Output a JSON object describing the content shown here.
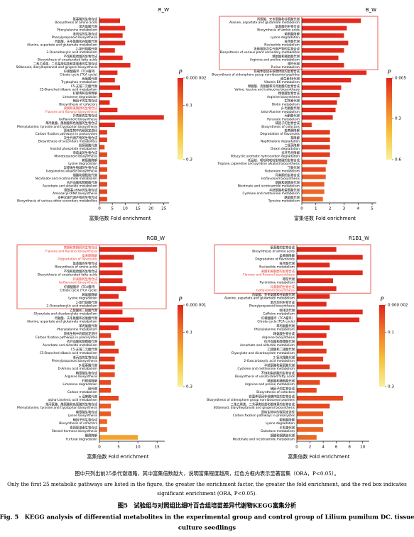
{
  "chart_data": [
    {
      "type": "bar",
      "title": "R_W",
      "x_label": "富集倍数 Fold enrichment",
      "xlim": [
        0,
        27
      ],
      "xticks": [
        0,
        5,
        10,
        15,
        20,
        25
      ],
      "categories_zh": [
        "氨基酸的生物合成",
        "苯丙氨酸代谢",
        "苯丙烷的生物合成",
        "丙氨酸、天冬氨酸和谷氨酸代谢",
        "2-氧代羧酸代谢",
        "不饱和脂肪酸的生物合成",
        "二苯乙烯类、二芳基庚烷类和姜辣素的生物合成",
        "柠檬酸循环（TCA循环）",
        "色氨酸代谢",
        "C5-支链二元酸代谢",
        "柠檬烯和蒎烯降解",
        "辅因子的生物合成",
        "黄酮和黄酮醇的生物合成",
        "异黄酮的生物合成",
        "苯丙氨酸、酪氨酸和色氨酸的生物合成",
        "原核生物中的碳固定途径",
        "次生代谢产物的生物合成",
        "肌醇磷酸代谢",
        "单萜类的生物合成",
        "赖氨酸降解",
        "异喹啉生物碱的生物合成",
        "烟酸和烟酰胺代谢",
        "抗坏血酸和醛糖酸代谢",
        "氨酰基-tRNA的生物合成",
        "多种次级代谢产物的生物合成"
      ],
      "categories": [
        "Biosynthesis of amino acids",
        "Phenylalanine metabolism",
        "Phenylpropanoid biosynthesis",
        "Alanine, aspartate and glutamate metabolism",
        "2-Oxocarboxylic acid metabolism",
        "Biosynthesis of unsaturated fatty acids",
        "Stilbenoid, diarylheptanoid and gingerol biosynthesis",
        "Citrate cycle (TCA cycle)",
        "Tryptophan metabolism",
        "C5-Branched dibasic acid metabolism",
        "Limonene degradation",
        "Biosynthesis of cofactors",
        "Flavone and flavonol biosynthesis",
        "Isoflavonoid biosynthesis",
        "Phenylalanine, tyrosine and tryptophan biosynthesis",
        "Carbon fixation pathways in prokaryotes",
        "Biosynthesis of secondary metabolites",
        "Inositol phosphate metabolism",
        "Monoterpenoid biosynthesis",
        "Lysine degradation",
        "Isoquinoline alkaloid biosynthesis",
        "Nicotinate and nicotinamide metabolism",
        "Ascorbate and aldarate metabolism",
        "Aminoacyl-tRNA biosynthesis",
        "Biosynthesis of various other secondary metabolites"
      ],
      "values": [
        8,
        10,
        9,
        10,
        6,
        9,
        12,
        7,
        6,
        8,
        5,
        4,
        7,
        25,
        6,
        3,
        3,
        2,
        3,
        3,
        3,
        3,
        3,
        3,
        3
      ],
      "bar_colors": [
        "#e12a1c",
        "#e12a1c",
        "#e12a1c",
        "#e12a1c",
        "#e12a1c",
        "#e12a1c",
        "#e12a1c",
        "#e12a1c",
        "#e12a1c",
        "#e12a1c",
        "#e12a1c",
        "#e12a1c",
        "#e12a1c",
        "#e12a1c",
        "#e12a1c",
        "#e23a1e",
        "#e23a1e",
        "#e5461f",
        "#e5461f",
        "#e5461f",
        "#e5461f",
        "#e5461f",
        "#e5461f",
        "#e5461f",
        "#e5461f"
      ],
      "label_colors": [
        "#000",
        "#000",
        "#000",
        "#000",
        "#000",
        "#000",
        "#000",
        "#000",
        "#000",
        "#000",
        "#000",
        "#000",
        "#e8382e",
        "#000",
        "#000",
        "#000",
        "#000",
        "#000",
        "#000",
        "#000",
        "#000",
        "#000",
        "#000",
        "#000",
        "#000"
      ],
      "box_color": "#e8382e",
      "colorbar_title": "P",
      "colorbar_colors": [
        "#e0251a",
        "#f07a2a",
        "#f7c13a",
        "#f7f09a"
      ],
      "colorbar_lim": [
        2e-06,
        0.3
      ],
      "colorbar_ticks": [
        {
          "value": 2e-06,
          "label": "0.000 002"
        },
        0.1,
        0.3
      ]
    },
    {
      "type": "bar",
      "title": "B_W",
      "x_label": "富集倍数 Fold enrichment",
      "xlim": [
        0,
        5.3
      ],
      "xticks": [
        0,
        1,
        2,
        3,
        4,
        5
      ],
      "categories_zh": [
        "丙氨酸、天冬氨酸和谷氨酸代谢",
        "氨基酸的生物合成",
        "赖氨酸降解",
        "核苷酸代谢",
        "各种植物次生代谢产物的生物合成",
        "精氨酸和脯氨酸代谢",
        "嘌呤代谢",
        "铁载体基团非核糖体肽的生物合成",
        "维生素B6代谢",
        "缬氨酸、亮氨酸和异亮氨酸的生物合成",
        "精氨酸生物合成",
        "生物素代谢",
        "β-丙氨酸代谢",
        "丙酮酸代谢",
        "辅因子的生物合成",
        "类黄酮降解",
        "萘降解",
        "二噁英降解",
        "多环芳烃降解",
        "托品烷、哌啶和吡啶生物碱的生物合成",
        "丁酸代谢",
        "异黄酮的生物合成",
        "烟酸和烟酰胺代谢",
        "半胱氨酸和蛋氨酸代谢",
        "酪氨酸代谢"
      ],
      "categories": [
        "Alanine, aspartate and glutamate metabolism",
        "Biosynthesis of amino acids",
        "Lysine degradation",
        "Nucleotide metabolism",
        "Biosynthesis of various plant secondary metabolites",
        "Arginine and proline metabolism",
        "Purine metabolism",
        "Biosynthesis of siderophore group nonribosomal peptides",
        "Vitamin B6 metabolism",
        "Valine, leucine and isoleucine biosynthesis",
        "Arginine biosynthesis",
        "Biotin metabolism",
        "beta-Alanine metabolism",
        "Pyruvate metabolism",
        "Biosynthesis of cofactors",
        "Degradation of flavonoids",
        "Naphthalene degradation",
        "Dioxin degradation",
        "Polycyclic aromatic hydrocarbon degradation",
        "Tropane, piperidine and pyridine alkaloid biosynthesis",
        "Butanoate metabolism",
        "Isoflavonoid biosynthesis",
        "Nicotinate and nicotinamide metabolism",
        "Cysteine and methionine metabolism",
        "Tyrosine metabolism"
      ],
      "values": [
        4.2,
        3.2,
        3,
        3.3,
        3,
        2.6,
        3,
        4.6,
        3.5,
        2.8,
        2.7,
        2.5,
        2.4,
        2.2,
        0.7,
        2,
        2,
        2,
        2,
        1.8,
        1.7,
        1.7,
        1.6,
        1.6,
        1.5
      ],
      "bar_colors": [
        "#e12a1c",
        "#e12a1c",
        "#e12a1c",
        "#e12a1c",
        "#e12a1c",
        "#e12a1c",
        "#e12a1c",
        "#e12a1c",
        "#e12a1c",
        "#e12a1c",
        "#e12a1c",
        "#e12a1c",
        "#e12a1c",
        "#e12a1c",
        "#e33a1e",
        "#e33a1e",
        "#e33a1e",
        "#e33a1e",
        "#e33a1e",
        "#e6481f",
        "#e6481f",
        "#ea5a24",
        "#ea5a24",
        "#ec6626",
        "#ec6626"
      ],
      "label_colors": [
        "#000",
        "#000",
        "#000",
        "#000",
        "#000",
        "#000",
        "#000",
        "#000",
        "#000",
        "#000",
        "#000",
        "#000",
        "#000",
        "#000",
        "#000",
        "#000",
        "#000",
        "#000",
        "#000",
        "#000",
        "#000",
        "#000",
        "#000",
        "#000",
        "#000"
      ],
      "box_color": "#e8382e",
      "box_rows": [
        0,
        6
      ],
      "colorbar_title": "P",
      "colorbar_colors": [
        "#e0251a",
        "#f07a2a",
        "#f7c13a",
        "#f7f09a"
      ],
      "colorbar_lim": [
        0.005,
        0.6
      ],
      "colorbar_ticks": [
        0.005,
        0.3,
        0.6
      ]
    },
    {
      "type": "bar",
      "title": "RGB_W",
      "x_label": "富集倍数 Fold enrichment",
      "xlim": [
        0,
        17
      ],
      "xticks": [
        0,
        5,
        10,
        15
      ],
      "categories_zh": [
        "黄酮和黄酮醇的生物合成",
        "类黄酮降解",
        "氨基酸的生物合成",
        "不饱和脂肪酸的生物合成",
        "异黄酮的生物合成",
        "柠檬酸循环（TCA循环）",
        "赖氨酸降解",
        "2-氧代羧酸代谢",
        "乙醛酸和二羧酸代谢",
        "丙氨酸、天冬氨酸和谷氨酸代谢",
        "苯丙氨酸代谢",
        "原核生物中的碳固定途径",
        "抗坏血酸和醛糖酸代谢",
        "C5-支链二元酸代谢",
        "苯丙烷的生物合成",
        "D-氨基酸代谢",
        "精氨酸生物合成",
        "柠檬烯降解",
        "碳代谢",
        "α-亚麻酸代谢",
        "苯丙氨酸、酪氨酸和色氨酸的生物合成",
        "赖氨酸生物合成",
        "辅因子的生物合成",
        "类固醇激素生物合成",
        "糠醛降解"
      ],
      "categories": [
        "Flavone and flavonol biosynthesis",
        "Degradation of flavonoids",
        "Biosynthesis of amino acids",
        "Biosynthesis of unsaturated fatty acids",
        "Isoflavonoid biosynthesis",
        "Citrate cycle (TCA cycle)",
        "Lysine degradation",
        "2-Oxocarboxylic acid metabolism",
        "Glyoxylate and dicarboxylate metabolism",
        "Alanine, aspartate and glutamate metabolism",
        "Phenylalanine metabolism",
        "Carbon fixation pathways in prokaryotes",
        "Ascorbate and aldarate metabolism",
        "C5-Branched dibasic acid metabolism",
        "Phenylpropanoid biosynthesis",
        "D-Amino acid metabolism",
        "Arginine biosynthesis",
        "Limonene degradation",
        "Carbon metabolism",
        "alpha-Linolenic acid metabolism",
        "Phenylalanine, tyrosine and tryptophan biosynthesis",
        "Lysine biosynthesis",
        "Biosynthesis of cofactors",
        "Steroid hormone biosynthesis",
        "Furfural degradation"
      ],
      "values": [
        15,
        9,
        6,
        6,
        6,
        7,
        5,
        6,
        6,
        9,
        5,
        3,
        4,
        5,
        4,
        4,
        4,
        3,
        3,
        5,
        3,
        3,
        2,
        2,
        10
      ],
      "bar_colors": [
        "#e12a1c",
        "#e12a1c",
        "#e12a1c",
        "#e12a1c",
        "#e12a1c",
        "#e12a1c",
        "#e12a1c",
        "#e12a1c",
        "#e12a1c",
        "#e12a1c",
        "#e12a1c",
        "#e33a1e",
        "#e33a1e",
        "#e33a1e",
        "#e33a1e",
        "#e33a1e",
        "#e6481f",
        "#e6481f",
        "#e6481f",
        "#e6481f",
        "#ea5a24",
        "#ea5a24",
        "#ec6626",
        "#ec6626",
        "#f4a32f"
      ],
      "label_colors": [
        "#e8382e",
        "#e8382e",
        "#000",
        "#000",
        "#e8382e",
        "#000",
        "#000",
        "#000",
        "#000",
        "#000",
        "#000",
        "#000",
        "#000",
        "#000",
        "#000",
        "#000",
        "#000",
        "#000",
        "#000",
        "#000",
        "#000",
        "#000",
        "#000",
        "#000",
        "#000"
      ],
      "box_color": "#e8382e",
      "box_rows": [
        0,
        7
      ],
      "colorbar_title": "P",
      "colorbar_colors": [
        "#e0251a",
        "#f07a2a",
        "#f7c13a",
        "#f7f09a"
      ],
      "colorbar_lim": [
        1e-06,
        0.3
      ],
      "colorbar_ticks": [
        {
          "value": 1e-06,
          "label": "0.000 001"
        },
        0.1,
        0.3
      ]
    },
    {
      "type": "bar",
      "title": "R1B1_W",
      "x_label": "富集倍数 Fold enrichment",
      "xlim": [
        0,
        11
      ],
      "xticks": [
        0,
        2,
        4,
        6,
        8,
        10
      ],
      "categories_zh": [
        "氨基酸的生物合成",
        "类黄酮降解",
        "核苷酸代谢",
        "黄酮和黄酮醇的生物合成",
        "嘧啶代谢",
        "异黄酮的生物合成",
        "丙氨酸、天冬氨酸和谷氨酸代谢",
        "苯丙烷的生物合成",
        "咖啡因代谢",
        "柠檬酸循环（TCA循环）",
        "苯丙氨酸代谢",
        "精氨酸生物合成",
        "抗坏血酸和醛糖酸代谢",
        "乙醛酸和二羧酸代谢",
        "2-氧代羧酸代谢",
        "半胱氨酸和蛋氨酸代谢",
        "不饱和脂肪酸的生物合成",
        "精氨酸和脯氨酸代谢",
        "辅因子的生物合成",
        "铁载体基团非核糖体肽的生物合成",
        "二苯乙烯类、二芳基庚烷类和姜辣素的生物合成",
        "原核生物中的碳固定途径",
        "赖氨酸降解",
        "半乳糖代谢",
        "烟酸和烟酰胺代谢"
      ],
      "categories": [
        "Biosynthesis of amino acids",
        "Degradation of flavonoids",
        "Nucleotide metabolism",
        "Flavone and flavonol biosynthesis",
        "Pyrimidine metabolism",
        "Isoflavonoid biosynthesis",
        "Alanine, aspartate and glutamate metabolism",
        "Phenylpropanoid biosynthesis",
        "Caffeine metabolism",
        "Citrate cycle (TCA cycle)",
        "Phenylalanine metabolism",
        "Arginine biosynthesis",
        "Ascorbate and aldarate metabolism",
        "Glyoxylate and dicarboxylate metabolism",
        "2-Oxocarboxylic acid metabolism",
        "Cysteine and methionine metabolism",
        "Biosynthesis of unsaturated fatty acids",
        "Arginine and proline metabolism",
        "Biosynthesis of cofactors",
        "Biosynthesis of siderophore group nonribosomal peptides",
        "Stilbenoid, diarylheptanoid and gingerol biosynthesis",
        "Carbon fixation pathways in prokaryotes",
        "Lysine degradation",
        "Galactose metabolism",
        "Nicotinate and nicotinamide metabolism"
      ],
      "values": [
        6,
        10,
        5,
        10,
        5.5,
        6,
        5,
        4.5,
        10,
        9.5,
        5,
        4.5,
        4,
        4.5,
        4,
        5,
        6,
        3.5,
        3,
        7,
        5,
        4,
        4,
        4,
        3
      ],
      "bar_colors": [
        "#e12a1c",
        "#e12a1c",
        "#e12a1c",
        "#e12a1c",
        "#e12a1c",
        "#e12a1c",
        "#e12a1c",
        "#e12a1c",
        "#e12a1c",
        "#e12a1c",
        "#e12a1c",
        "#e12a1c",
        "#e33a1e",
        "#e33a1e",
        "#e33a1e",
        "#e33a1e",
        "#e33a1e",
        "#e6481f",
        "#e6481f",
        "#e6481f",
        "#e6481f",
        "#ea5a24",
        "#ea5a24",
        "#ec6626",
        "#ec6626"
      ],
      "label_colors": [
        "#000",
        "#000",
        "#000",
        "#e8382e",
        "#000",
        "#e8382e",
        "#000",
        "#000",
        "#000",
        "#000",
        "#000",
        "#000",
        "#000",
        "#000",
        "#000",
        "#000",
        "#000",
        "#000",
        "#000",
        "#000",
        "#000",
        "#000",
        "#000",
        "#000",
        "#000"
      ],
      "box_color": "#e8382e",
      "box_rows": [
        0,
        5
      ],
      "colorbar_title": "P",
      "colorbar_colors": [
        "#e0251a",
        "#f07a2a",
        "#f7c13a",
        "#f7f09a"
      ],
      "colorbar_lim": [
        2e-06,
        0.3
      ],
      "colorbar_ticks": [
        {
          "value": 2e-06,
          "label": "0.000 002"
        },
        0.1,
        0.3
      ]
    }
  ],
  "caption": {
    "zh": "图中只列出前25条代谢通路，其中富集倍数越大，说明富集程度越高，红色方框内表示显著富集（ORA，P<0.05）。",
    "en": [
      "Only the first 25 metabolic pathways are listed in the figure, the greater the enrichment factor, the greater the fold enrichment, and the red box indicates",
      "significant enrichment (ORA, P<0.05)."
    ]
  },
  "figure_title": {
    "zh": "图5　试验组与对照组比细叶百合组培苗差异代谢物KEGG富集分析",
    "en": [
      "Fig. 5　KEGG analysis of differential metabolites in the experimental group and control group of Lilium pumilum DC. tissue",
      "culture seedlings"
    ]
  }
}
